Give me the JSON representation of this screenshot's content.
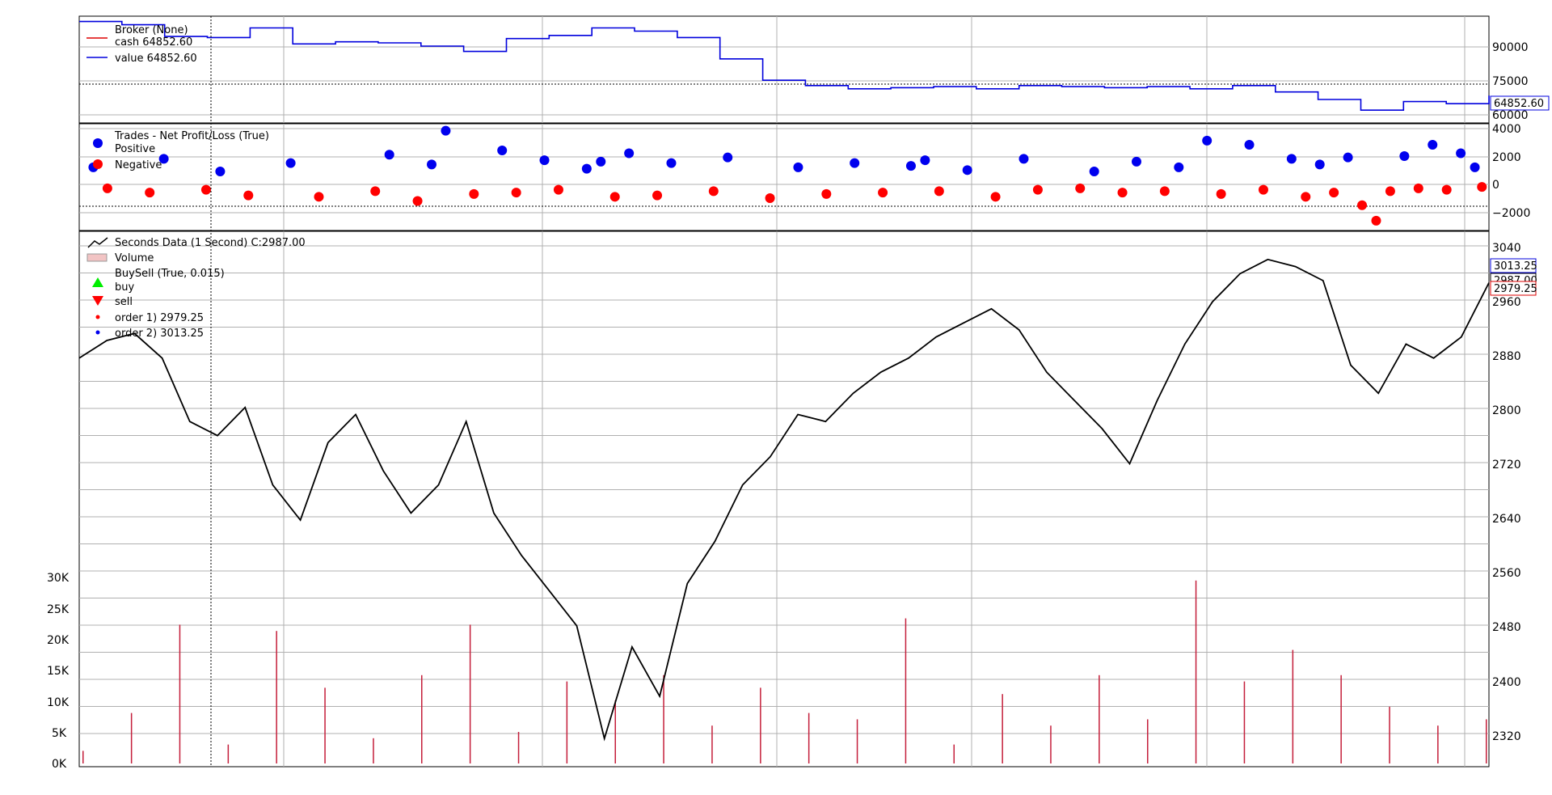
{
  "colors": {
    "value_line": "#0000dd",
    "cash_line": "#dd0000",
    "price_line": "#000000",
    "buy_marker": "#00ee00",
    "sell_marker": "#ff0000",
    "pnl_positive": "#0000ee",
    "pnl_negative": "#ff0000",
    "volume_bar": "#c41e3a",
    "grid": "#b0b0b0"
  },
  "broker_panel": {
    "legend_title": "Broker (None)",
    "cash_label": "cash 64852.60",
    "value_label": "value 64852.60",
    "yticks": [
      "90000",
      "75000",
      "60000"
    ],
    "last_value_tag": "64852.60"
  },
  "trades_panel": {
    "legend_title": "Trades - Net Profit/Loss (True)",
    "positive_label": "Positive",
    "negative_label": "Negative",
    "yticks": [
      "4000",
      "2000",
      "0",
      "−2000"
    ]
  },
  "price_panel": {
    "data_label": "Seconds Data (1 Second) C:2987.00",
    "volume_label": "Volume",
    "buysell_label": "BuySell (True, 0.015)",
    "buy_label": "buy",
    "sell_label": "sell",
    "order_label_1": "order 1) 2979.25",
    "order_label_2": "order 2) 3013.25",
    "yticks": [
      "3040",
      "2960",
      "2880",
      "2800",
      "2720",
      "2640",
      "2560",
      "2480",
      "2400",
      "2320"
    ],
    "volume_yticks": [
      "30K",
      "25K",
      "20K",
      "15K",
      "10K",
      "5K",
      "0K"
    ],
    "tag_upper": "3013.25",
    "tag_mid": "2987.00",
    "tag_lower": "2979.25"
  },
  "chart_data": [
    {
      "type": "line",
      "title": "",
      "series": [
        {
          "name": "value",
          "values": [
            99500,
            98000,
            92500,
            92000,
            96500,
            89000,
            90000,
            89500,
            88000,
            85500,
            91500,
            93000,
            96500,
            95000,
            92000,
            82000,
            72000,
            69500,
            68000,
            68500,
            69000,
            68000,
            69500,
            69000,
            68500,
            69000,
            68000,
            69500,
            66500,
            63000,
            58000,
            62000,
            61000,
            64852.6
          ]
        },
        {
          "name": "cash",
          "values": [
            99500,
            98000,
            92500,
            92000,
            96500,
            89000,
            90000,
            89500,
            88000,
            85500,
            91500,
            93000,
            96500,
            95000,
            92000,
            82000,
            72000,
            69500,
            68000,
            68500,
            69000,
            68000,
            69500,
            69000,
            68500,
            69000,
            68000,
            69500,
            66500,
            63000,
            58000,
            62000,
            61000,
            64852.6
          ]
        }
      ],
      "ylim": [
        52000,
        102000
      ]
    },
    {
      "type": "scatter",
      "title": "",
      "series": [
        {
          "name": "Positive",
          "x": [
            0.01,
            0.06,
            0.1,
            0.15,
            0.22,
            0.25,
            0.26,
            0.3,
            0.33,
            0.36,
            0.37,
            0.39,
            0.42,
            0.46,
            0.51,
            0.55,
            0.59,
            0.6,
            0.63,
            0.67,
            0.72,
            0.75,
            0.78,
            0.8,
            0.83,
            0.86,
            0.88,
            0.9,
            0.94,
            0.96,
            0.98,
            0.99
          ],
          "values": [
            1200,
            1800,
            900,
            1500,
            2100,
            1400,
            3800,
            2400,
            1700,
            1100,
            1600,
            2200,
            1500,
            1900,
            1200,
            1500,
            1300,
            1700,
            1000,
            1800,
            900,
            1600,
            1200,
            3100,
            2800,
            1800,
            1400,
            1900,
            2000,
            2800,
            2200,
            1200
          ]
        },
        {
          "name": "Negative",
          "x": [
            0.02,
            0.05,
            0.09,
            0.12,
            0.17,
            0.21,
            0.24,
            0.28,
            0.31,
            0.34,
            0.38,
            0.41,
            0.45,
            0.49,
            0.53,
            0.57,
            0.61,
            0.65,
            0.68,
            0.71,
            0.74,
            0.77,
            0.81,
            0.84,
            0.87,
            0.89,
            0.91,
            0.92,
            0.93,
            0.95,
            0.97,
            0.995
          ],
          "values": [
            -300,
            -600,
            -400,
            -800,
            -900,
            -500,
            -1200,
            -700,
            -600,
            -400,
            -900,
            -800,
            -500,
            -1000,
            -700,
            -600,
            -500,
            -900,
            -400,
            -300,
            -600,
            -500,
            -700,
            -400,
            -900,
            -600,
            -1500,
            -2600,
            -500,
            -300,
            -400,
            -200
          ]
        }
      ],
      "ylim": [
        -3300,
        4300
      ]
    },
    {
      "type": "line",
      "title": "",
      "series": [
        {
          "name": "Seconds Data (1 Second) C:2987.00",
          "values": [
            2880,
            2905,
            2915,
            2880,
            2790,
            2770,
            2810,
            2700,
            2650,
            2760,
            2800,
            2720,
            2660,
            2700,
            2790,
            2660,
            2600,
            2550,
            2500,
            2340,
            2470,
            2400,
            2560,
            2620,
            2700,
            2740,
            2800,
            2790,
            2830,
            2860,
            2880,
            2910,
            2930,
            2950,
            2920,
            2860,
            2820,
            2780,
            2730,
            2820,
            2900,
            2960,
            3000,
            3020,
            3010,
            2990,
            2870,
            2830,
            2900,
            2880,
            2910,
            2987
          ]
        }
      ],
      "ylim": [
        2300,
        3060
      ]
    },
    {
      "type": "bar",
      "title": "",
      "series": [
        {
          "name": "Volume",
          "values": [
            2000,
            8000,
            22000,
            3000,
            21000,
            12000,
            4000,
            14000,
            22000,
            5000,
            13000,
            10000,
            14000,
            6000,
            12000,
            8000,
            7000,
            23000,
            3000,
            11000,
            6000,
            14000,
            7000,
            29000,
            13000,
            18000,
            14000,
            9000,
            6000,
            7000
          ]
        }
      ],
      "ylim": [
        0,
        30000
      ]
    }
  ]
}
